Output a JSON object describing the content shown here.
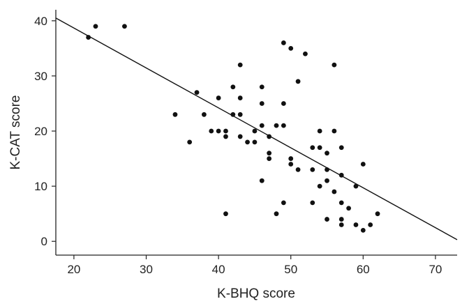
{
  "chart_data": {
    "type": "scatter",
    "xlabel": "K-BHQ score",
    "ylabel": "K-CAT score",
    "xlim": [
      17.5,
      73
    ],
    "ylim": [
      -2.5,
      42
    ],
    "xticks": [
      20,
      30,
      40,
      50,
      60,
      70
    ],
    "yticks": [
      0,
      10,
      20,
      30,
      40
    ],
    "grid": false,
    "legend": "none",
    "points": [
      [
        22,
        37
      ],
      [
        23,
        39
      ],
      [
        27,
        39
      ],
      [
        34,
        23
      ],
      [
        36,
        18
      ],
      [
        37,
        27
      ],
      [
        38,
        23
      ],
      [
        39,
        20
      ],
      [
        40,
        26
      ],
      [
        40,
        20
      ],
      [
        41,
        20
      ],
      [
        41,
        19
      ],
      [
        41,
        5
      ],
      [
        42,
        28
      ],
      [
        42,
        23
      ],
      [
        43,
        32
      ],
      [
        43,
        26
      ],
      [
        43,
        23
      ],
      [
        43,
        19
      ],
      [
        44,
        18
      ],
      [
        45,
        20
      ],
      [
        45,
        18
      ],
      [
        46,
        28
      ],
      [
        46,
        25
      ],
      [
        46,
        21
      ],
      [
        46,
        11
      ],
      [
        47,
        19
      ],
      [
        47,
        16
      ],
      [
        47,
        15
      ],
      [
        48,
        21
      ],
      [
        48,
        5
      ],
      [
        49,
        36
      ],
      [
        49,
        25
      ],
      [
        49,
        21
      ],
      [
        49,
        7
      ],
      [
        50,
        35
      ],
      [
        50,
        15
      ],
      [
        50,
        14
      ],
      [
        51,
        29
      ],
      [
        51,
        13
      ],
      [
        52,
        34
      ],
      [
        53,
        17
      ],
      [
        53,
        13
      ],
      [
        53,
        7
      ],
      [
        54,
        20
      ],
      [
        54,
        17
      ],
      [
        54,
        10
      ],
      [
        55,
        16
      ],
      [
        55,
        13
      ],
      [
        55,
        11
      ],
      [
        55,
        4
      ],
      [
        56,
        32
      ],
      [
        56,
        20
      ],
      [
        56,
        9
      ],
      [
        57,
        17
      ],
      [
        57,
        12
      ],
      [
        57,
        7
      ],
      [
        57,
        4
      ],
      [
        57,
        3
      ],
      [
        58,
        6
      ],
      [
        59,
        10
      ],
      [
        59,
        3
      ],
      [
        60,
        14
      ],
      [
        60,
        2
      ],
      [
        61,
        3
      ],
      [
        62,
        5
      ]
    ],
    "regression": {
      "x": [
        17.5,
        73
      ],
      "y": [
        40.5,
        0.3
      ]
    }
  }
}
